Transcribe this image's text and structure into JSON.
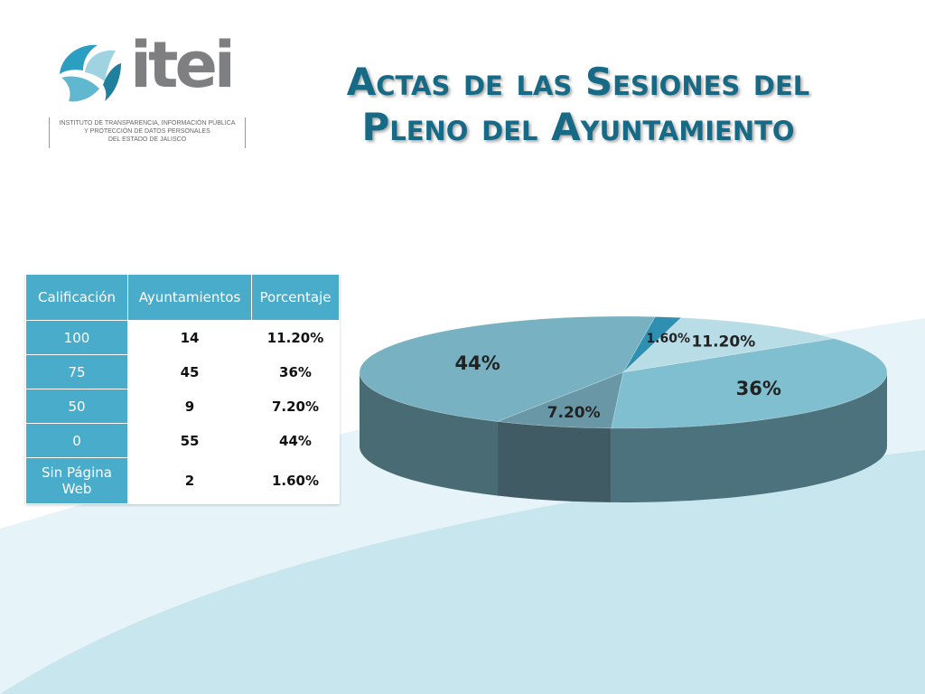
{
  "logo": {
    "wordmark": "itei",
    "subtitle_lines": [
      "INSTITUTO DE TRANSPARENCIA, INFORMACIÓN PÚBLICA",
      "Y PROTECCIÓN DE DATOS PERSONALES",
      "DEL ESTADO DE JALISCO"
    ]
  },
  "title": {
    "line1": "Actas de las Sesiones del",
    "line2": "Pleno del Ayuntamiento"
  },
  "table": {
    "headers": [
      "Calificación",
      "Ayuntamientos",
      "Porcentaje"
    ],
    "rows": [
      [
        "100",
        "14",
        "11.20%"
      ],
      [
        "75",
        "45",
        "36%"
      ],
      [
        "50",
        "9",
        "7.20%"
      ],
      [
        "0",
        "55",
        "44%"
      ],
      [
        "Sin Página Web",
        "2",
        "1.60%"
      ]
    ]
  },
  "chart_data": {
    "type": "pie",
    "title": "",
    "slices": [
      {
        "category": "100",
        "value": 11.2,
        "label": "11.20%",
        "color": "#b9dde6"
      },
      {
        "category": "75",
        "value": 36,
        "label": "36%",
        "color": "#7fbfd0"
      },
      {
        "category": "50",
        "value": 7.2,
        "label": "7.20%",
        "color": "#6a97a5"
      },
      {
        "category": "0",
        "value": 44,
        "label": "44%",
        "color": "#78b2c2"
      },
      {
        "category": "Sin Página Web",
        "value": 1.6,
        "label": "1.60%",
        "color": "#2f8fb0"
      }
    ],
    "style": "3d"
  },
  "colors": {
    "title": "#176a85",
    "table_header": "#4aaccb",
    "background_wave": "#cfe8ef"
  }
}
